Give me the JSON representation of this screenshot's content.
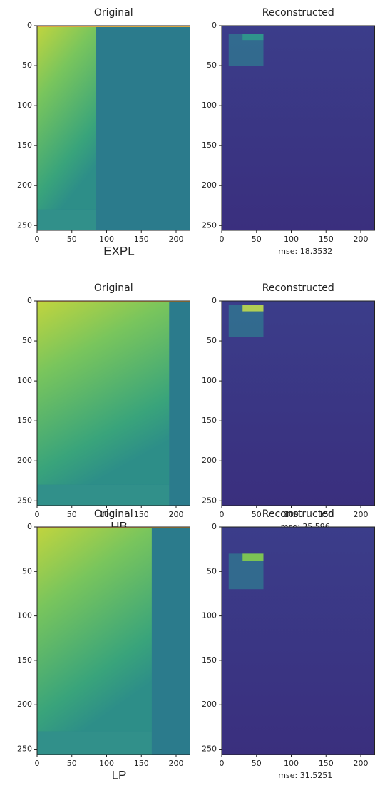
{
  "chart_data": [
    {
      "type": "heatmap",
      "title": "Original",
      "caption": "EXPL",
      "xlim": [
        0,
        220
      ],
      "ylim": [
        0,
        256
      ],
      "y_inverted": true,
      "xticks": [
        0,
        50,
        100,
        150,
        200
      ],
      "yticks": [
        0,
        50,
        100,
        150,
        200,
        250
      ],
      "cmap": "viridis"
    },
    {
      "type": "heatmap",
      "title": "Reconstructed",
      "caption": "mse: 18.3532",
      "xlim": [
        0,
        220
      ],
      "ylim": [
        0,
        256
      ],
      "y_inverted": true,
      "xticks": [
        0,
        50,
        100,
        150,
        200
      ],
      "yticks": [
        0,
        50,
        100,
        150,
        200,
        250
      ],
      "cmap": "viridis"
    },
    {
      "type": "heatmap",
      "title": "Original",
      "caption": "HB",
      "xlim": [
        0,
        220
      ],
      "ylim": [
        0,
        256
      ],
      "y_inverted": true,
      "xticks": [
        0,
        50,
        100,
        150,
        200
      ],
      "yticks": [
        0,
        50,
        100,
        150,
        200,
        250
      ],
      "cmap": "viridis"
    },
    {
      "type": "heatmap",
      "title": "Reconstructed",
      "caption": "mse: 35.596",
      "xlim": [
        0,
        220
      ],
      "ylim": [
        0,
        256
      ],
      "y_inverted": true,
      "xticks": [
        0,
        50,
        100,
        150,
        200
      ],
      "yticks": [
        0,
        50,
        100,
        150,
        200,
        250
      ],
      "cmap": "viridis"
    },
    {
      "type": "heatmap",
      "title": "Original",
      "caption": "LP",
      "xlim": [
        0,
        220
      ],
      "ylim": [
        0,
        256
      ],
      "y_inverted": true,
      "xticks": [
        0,
        50,
        100,
        150,
        200
      ],
      "yticks": [
        0,
        50,
        100,
        150,
        200,
        250
      ],
      "cmap": "viridis"
    },
    {
      "type": "heatmap",
      "title": "Reconstructed",
      "caption": "mse: 31.5251",
      "xlim": [
        0,
        220
      ],
      "ylim": [
        0,
        256
      ],
      "y_inverted": true,
      "xticks": [
        0,
        50,
        100,
        150,
        200
      ],
      "yticks": [
        0,
        50,
        100,
        150,
        200,
        250
      ],
      "cmap": "viridis"
    }
  ]
}
